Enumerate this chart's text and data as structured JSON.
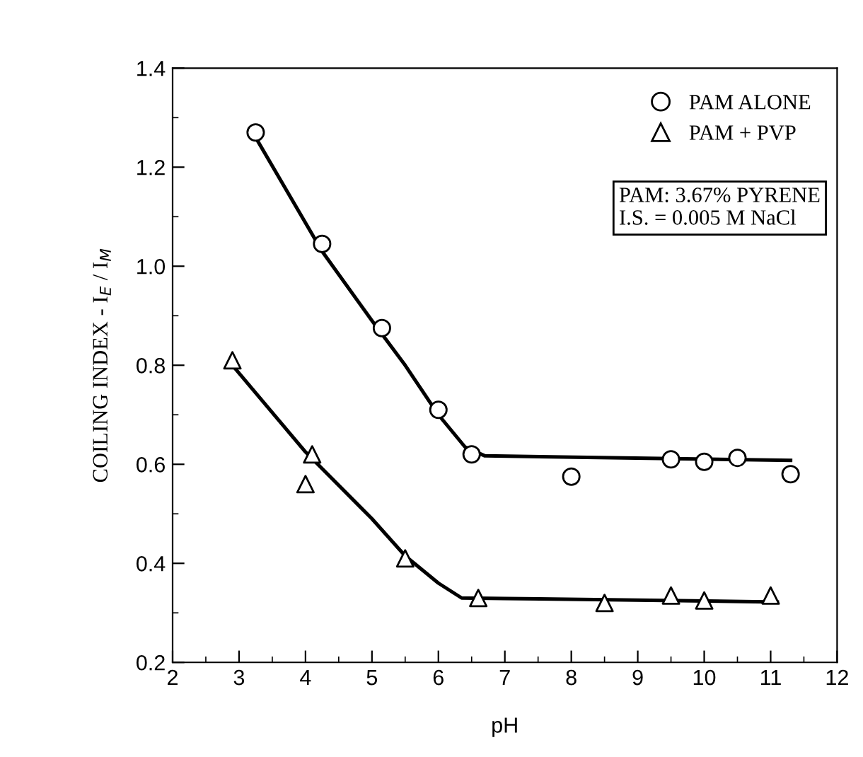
{
  "chart_data": {
    "type": "scatter",
    "xlabel": "pH",
    "ylabel": "COILING INDEX - I$_{E}$ / I$_{M}$",
    "xlim": [
      2,
      12
    ],
    "xticks": [
      2,
      3,
      4,
      5,
      6,
      7,
      8,
      9,
      10,
      11,
      12
    ],
    "ylim": [
      0.2,
      1.4
    ],
    "yticks": [
      {
        "value": 0.2,
        "label": "0.2"
      },
      {
        "value": 0.4,
        "label": "0.4"
      },
      {
        "value": 0.6,
        "label": "0.6"
      },
      {
        "value": 0.8,
        "label": "0.8"
      },
      {
        "value": 1.0,
        "label": "1.0"
      },
      {
        "value": 1.2,
        "label": "1.2"
      },
      {
        "value": 1.4,
        "label": "1.4"
      }
    ],
    "grid": false,
    "legend": "top right",
    "annotations": [
      "PAM: 3.67% PYRENE\nI.S. = 0.005 M NaCl"
    ],
    "series": [
      {
        "name": "PAM ALONE",
        "marker": "circle",
        "color": "#000000",
        "x": [
          3.25,
          4.25,
          5.15,
          6.0,
          6.5,
          8.0,
          9.5,
          10.0,
          10.5,
          11.3
        ],
        "values": [
          1.27,
          1.045,
          0.875,
          0.71,
          0.62,
          0.575,
          0.61,
          0.605,
          0.613,
          0.58
        ]
      },
      {
        "name": "PAM + PVP",
        "marker": "triangle",
        "color": "#000000",
        "x": [
          2.9,
          4.0,
          4.1,
          5.5,
          6.6,
          8.5,
          9.5,
          10.0,
          11.0
        ],
        "values": [
          0.81,
          0.56,
          0.62,
          0.41,
          0.33,
          0.32,
          0.335,
          0.325,
          0.335
        ]
      },
      {
        "type": "line",
        "color": "#000000",
        "marker": "none",
        "line_style": "solid",
        "x": [
          3.25,
          4.25,
          5.0,
          5.5,
          6.0,
          6.4,
          6.7,
          11.3
        ],
        "values": [
          1.26,
          1.03,
          0.89,
          0.8,
          0.7,
          0.635,
          0.617,
          0.608
        ]
      },
      {
        "type": "line",
        "color": "#000000",
        "marker": "none",
        "line_style": "solid",
        "x": [
          2.9,
          4.0,
          5.0,
          5.5,
          6.0,
          6.35,
          7.0,
          11.1
        ],
        "values": [
          0.8,
          0.625,
          0.49,
          0.415,
          0.36,
          0.33,
          0.329,
          0.322
        ]
      }
    ]
  }
}
